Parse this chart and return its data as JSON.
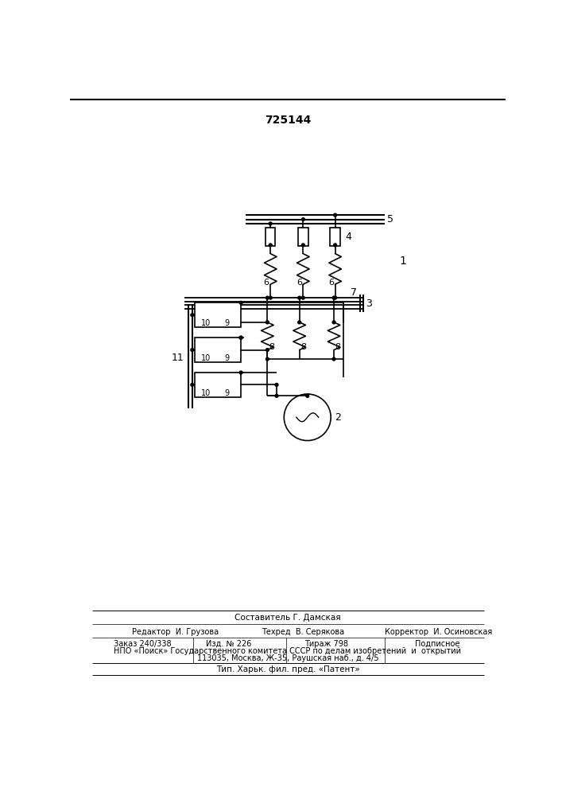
{
  "title": "725144",
  "bg_color": "#ffffff",
  "line_color": "#000000",
  "lw": 1.2,
  "footer_composer": "Составитель Г. Дамская",
  "footer_editor": "Редактор  И. Грузова",
  "footer_techred": "Техред  В. Серякова",
  "footer_corrector": "Корректор  И. Осиновская",
  "footer_zakaz": "Заказ 240/338",
  "footer_izd": "Изд. № 226",
  "footer_tirazh": "Тираж 798",
  "footer_podp": "Подписное",
  "footer_npo": "НПО «Поиск» Государственного комитета СССР по делам изобретений  и  открытий",
  "footer_addr": "113035, Москва, Ж-35, Раушская наб., д. 4/5",
  "footer_tip": "Тип. Харьк. фил. пред. «Патент»"
}
